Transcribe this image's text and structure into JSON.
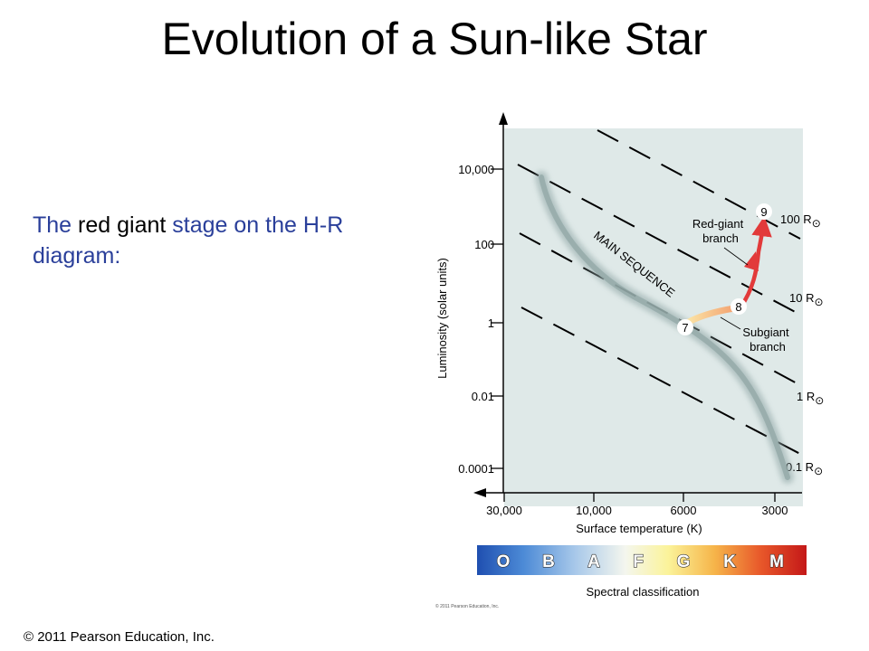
{
  "slide": {
    "title": "Evolution of a Sun-like Star",
    "intro_part1": "The ",
    "intro_highlight": "red giant",
    "intro_part2": " stage on the H-R diagram:",
    "footer": "© 2011 Pearson Education, Inc."
  },
  "diagram": {
    "y_axis_label": "Luminosity (solar units)",
    "x_axis_label": "Surface temperature (K)",
    "y_ticks": [
      "10,000",
      "100",
      "1",
      "0.01",
      "0.0001"
    ],
    "x_ticks": [
      "30,000",
      "10,000",
      "6000",
      "3000"
    ],
    "radius_lines": [
      {
        "label": "100 R",
        "symbol": "⊙"
      },
      {
        "label": "10 R",
        "symbol": "⊙"
      },
      {
        "label": "1 R",
        "symbol": "⊙"
      },
      {
        "label": "0.1 R",
        "symbol": "⊙"
      }
    ],
    "main_sequence_label": "MAIN SEQUENCE",
    "red_giant_label_1": "Red-giant",
    "red_giant_label_2": "branch",
    "subgiant_label_1": "Subgiant",
    "subgiant_label_2": "branch",
    "stage_markers": [
      "7",
      "8",
      "9"
    ],
    "spectral_classes": [
      "O",
      "B",
      "A",
      "F",
      "G",
      "K",
      "M"
    ],
    "spectral_label": "Spectral classification",
    "copyright_small": "© 2011 Pearson Education, Inc.",
    "colors": {
      "plot_bg": "#dfe9e8",
      "red_giant_track": "#e23a3a",
      "subgiant_track": "#f4b07a",
      "main_sequence_band": "#8fa5a5"
    }
  }
}
